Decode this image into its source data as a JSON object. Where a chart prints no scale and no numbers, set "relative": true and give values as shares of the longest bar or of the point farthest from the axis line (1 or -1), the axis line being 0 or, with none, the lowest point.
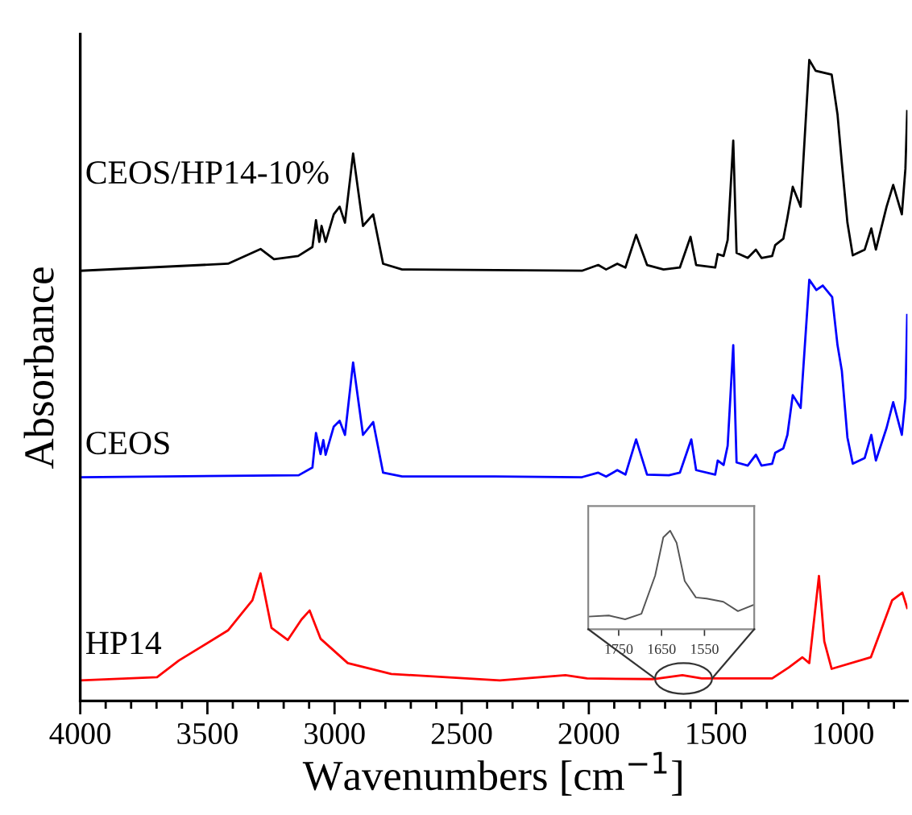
{
  "chart_data": [
    {
      "type": "line",
      "xlabel": "Wavenumbers [cm$^{−1}$]",
      "ylabel": "Absorbance",
      "relative": true,
      "xlim": [
        4000,
        747
      ],
      "tick_labels": "x",
      "legend": false,
      "grid": false,
      "xticks": [
        4000,
        {
          "value": 3900,
          "label": null
        },
        {
          "value": 3800,
          "label": null
        },
        {
          "value": 3700,
          "label": null
        },
        {
          "value": 3600,
          "label": null
        },
        3500,
        {
          "value": 3400,
          "label": null
        },
        {
          "value": 3300,
          "label": null
        },
        {
          "value": 3200,
          "label": null
        },
        {
          "value": 3100,
          "label": null
        },
        3000,
        {
          "value": 2900,
          "label": null
        },
        {
          "value": 2800,
          "label": null
        },
        {
          "value": 2700,
          "label": null
        },
        {
          "value": 2600,
          "label": null
        },
        2500,
        {
          "value": 2400,
          "label": null
        },
        {
          "value": 2300,
          "label": null
        },
        {
          "value": 2200,
          "label": null
        },
        {
          "value": 2100,
          "label": null
        },
        2000,
        {
          "value": 1900,
          "label": null
        },
        {
          "value": 1800,
          "label": null
        },
        {
          "value": 1700,
          "label": null
        },
        {
          "value": 1600,
          "label": null
        },
        1500,
        {
          "value": 1400,
          "label": null
        },
        {
          "value": 1300,
          "label": null
        },
        {
          "value": 1200,
          "label": null
        },
        {
          "value": 1100,
          "label": null
        },
        1000,
        {
          "value": 900,
          "label": null
        },
        {
          "value": 800,
          "label": null
        }
      ],
      "series": [
        {
          "name": "CEOS/HP14-10%",
          "color": "#000000",
          "x": [
            4000,
            3419,
            3291,
            3238,
            3143,
            3087,
            3073,
            3060,
            3051,
            3035,
            3003,
            2980,
            2959,
            2927,
            2888,
            2848,
            2809,
            2734,
            2027,
            1963,
            1932,
            1888,
            1856,
            1814,
            1771,
            1706,
            1642,
            1600,
            1578,
            1503,
            1493,
            1470,
            1454,
            1432,
            1419,
            1375,
            1343,
            1321,
            1279,
            1267,
            1235,
            1219,
            1198,
            1167,
            1133,
            1108,
            1045,
            1022,
            1005,
            983,
            962,
            915,
            889,
            871,
            829,
            803,
            769,
            755,
            748
          ],
          "values": [
            0.671,
            0.682,
            0.705,
            0.689,
            0.694,
            0.708,
            0.75,
            0.716,
            0.741,
            0.716,
            0.759,
            0.771,
            0.746,
            0.854,
            0.741,
            0.759,
            0.682,
            0.673,
            0.671,
            0.68,
            0.673,
            0.682,
            0.676,
            0.727,
            0.68,
            0.673,
            0.676,
            0.724,
            0.68,
            0.676,
            0.697,
            0.694,
            0.719,
            0.874,
            0.699,
            0.691,
            0.704,
            0.691,
            0.694,
            0.711,
            0.721,
            0.754,
            0.802,
            0.771,
            1.0,
            0.983,
            0.977,
            0.915,
            0.839,
            0.746,
            0.695,
            0.704,
            0.737,
            0.704,
            0.771,
            0.805,
            0.759,
            0.83,
            0.92
          ]
        },
        {
          "name": "CEOS",
          "color": "#0000ff",
          "x": [
            4000,
            3141,
            3087,
            3073,
            3055,
            3044,
            3035,
            3003,
            2980,
            2959,
            2927,
            2888,
            2848,
            2809,
            2734,
            2370,
            2027,
            1963,
            1932,
            1888,
            1856,
            1814,
            1771,
            1685,
            1642,
            1597,
            1578,
            1503,
            1493,
            1470,
            1454,
            1432,
            1419,
            1375,
            1343,
            1321,
            1279,
            1267,
            1235,
            1219,
            1198,
            1167,
            1133,
            1105,
            1080,
            1043,
            1022,
            1005,
            983,
            962,
            915,
            889,
            871,
            829,
            803,
            769,
            755,
            748
          ],
          "values": [
            0.349,
            0.352,
            0.364,
            0.418,
            0.385,
            0.407,
            0.384,
            0.428,
            0.437,
            0.415,
            0.528,
            0.415,
            0.435,
            0.356,
            0.35,
            0.35,
            0.349,
            0.356,
            0.35,
            0.36,
            0.353,
            0.408,
            0.353,
            0.352,
            0.356,
            0.408,
            0.36,
            0.353,
            0.375,
            0.368,
            0.398,
            0.555,
            0.372,
            0.367,
            0.384,
            0.367,
            0.37,
            0.387,
            0.394,
            0.415,
            0.477,
            0.457,
            0.657,
            0.641,
            0.648,
            0.63,
            0.555,
            0.515,
            0.411,
            0.37,
            0.379,
            0.415,
            0.375,
            0.426,
            0.466,
            0.415,
            0.472,
            0.602
          ]
        },
        {
          "name": "HP14",
          "color": "#ff0000",
          "x": [
            4000,
            3698,
            3612,
            3419,
            3323,
            3291,
            3248,
            3184,
            3130,
            3098,
            3055,
            2948,
            2777,
            2350,
            2092,
            2007,
            1748,
            1632,
            1556,
            1279,
            1214,
            1160,
            1133,
            1095,
            1074,
            1045,
            891,
            807,
            767,
            748
          ],
          "values": [
            0.032,
            0.037,
            0.063,
            0.11,
            0.157,
            0.199,
            0.114,
            0.095,
            0.127,
            0.141,
            0.097,
            0.059,
            0.042,
            0.032,
            0.04,
            0.035,
            0.034,
            0.04,
            0.035,
            0.035,
            0.052,
            0.068,
            0.059,
            0.195,
            0.093,
            0.05,
            0.068,
            0.157,
            0.169,
            0.145
          ]
        }
      ]
    },
    {
      "type": "line",
      "relative": true,
      "xlim": [
        1821,
        1434
      ],
      "xticks": [
        1750,
        1650,
        1550
      ],
      "tick_labels": "x",
      "grid": false,
      "legend": false,
      "series": [
        {
          "color": "#555555",
          "x": [
            1821,
            1773,
            1735,
            1697,
            1665,
            1646,
            1630,
            1615,
            1596,
            1570,
            1545,
            1506,
            1472,
            1434
          ],
          "values": [
            0.128,
            0.139,
            0.1,
            0.156,
            0.544,
            0.933,
            1.0,
            0.878,
            0.489,
            0.322,
            0.311,
            0.278,
            0.183,
            0.25
          ]
        }
      ]
    }
  ]
}
